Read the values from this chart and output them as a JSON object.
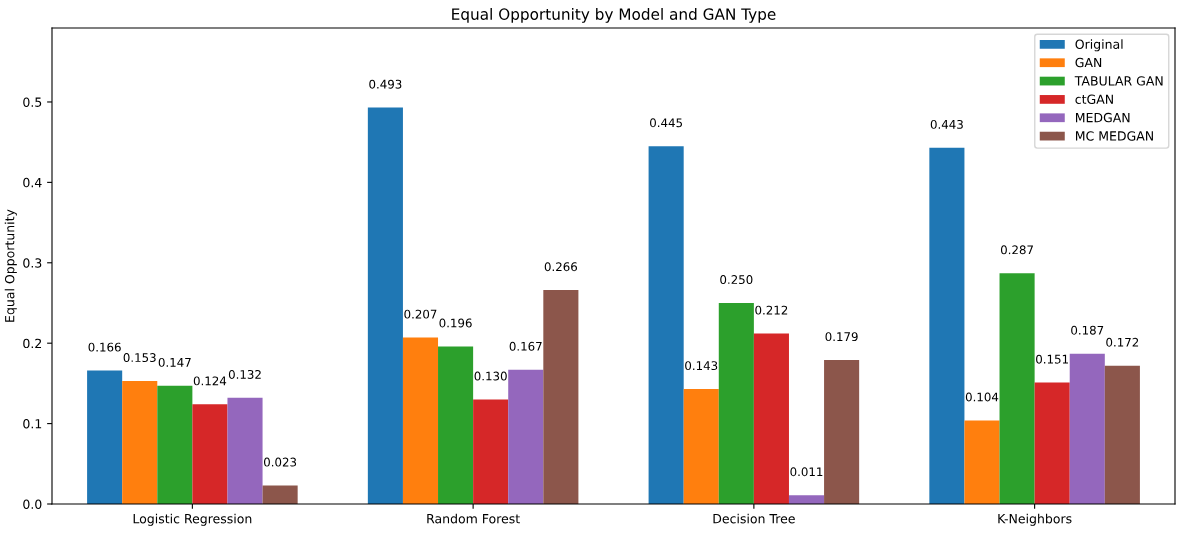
{
  "chart_data": {
    "type": "bar",
    "title": "Equal Opportunity by Model and GAN Type",
    "ylabel": "Equal Opportunity",
    "categories": [
      "Logistic Regression",
      "Random Forest",
      "Decision Tree",
      "K-Neighbors"
    ],
    "series": [
      {
        "name": "Original",
        "color": "#1f77b4",
        "values": [
          0.166,
          0.493,
          0.445,
          0.443
        ],
        "value_labels": [
          "0.166",
          "0.493",
          "0.445",
          "0.443"
        ]
      },
      {
        "name": "GAN",
        "color": "#ff7f0e",
        "values": [
          0.153,
          0.207,
          0.143,
          0.104
        ],
        "value_labels": [
          "0.153",
          "0.207",
          "0.143",
          "0.104"
        ]
      },
      {
        "name": "TABULAR GAN",
        "color": "#2ca02c",
        "values": [
          0.147,
          0.196,
          0.25,
          0.287
        ],
        "value_labels": [
          "0.147",
          "0.196",
          "0.250",
          "0.287"
        ]
      },
      {
        "name": "ctGAN",
        "color": "#d62728",
        "values": [
          0.124,
          0.13,
          0.212,
          0.151
        ],
        "value_labels": [
          "0.124",
          "0.130",
          "0.212",
          "0.151"
        ]
      },
      {
        "name": "MEDGAN",
        "color": "#9467bd",
        "values": [
          0.132,
          0.167,
          0.011,
          0.187
        ],
        "value_labels": [
          "0.132",
          "0.167",
          "0.011",
          "0.187"
        ]
      },
      {
        "name": "MC MEDGAN",
        "color": "#8c564b",
        "values": [
          0.023,
          0.266,
          0.179,
          0.172
        ],
        "value_labels": [
          "0.023",
          "0.266",
          "0.179",
          "0.172"
        ]
      }
    ],
    "ylim": [
      0,
      0.592
    ],
    "yticks": [
      {
        "value": 0,
        "label": "0.0"
      },
      0.1,
      0.2,
      0.3,
      0.4,
      0.5
    ],
    "grid": false,
    "legend": "top right"
  }
}
